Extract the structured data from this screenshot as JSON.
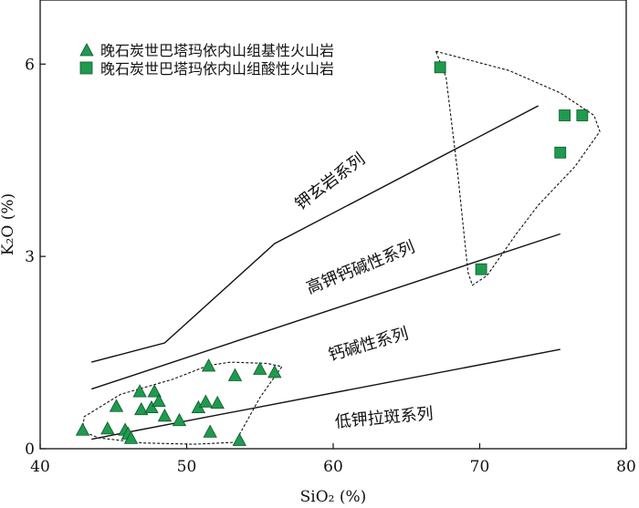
{
  "chart_data": {
    "type": "scatter",
    "xlabel": "SiO₂ (%)",
    "ylabel": "K₂O (%)",
    "xlim": [
      40,
      80
    ],
    "ylim": [
      0,
      7
    ],
    "x_ticks": [
      40,
      50,
      60,
      70,
      80
    ],
    "y_ticks": [
      0,
      3,
      6
    ],
    "grid": false,
    "legend_position": "top-left",
    "series": [
      {
        "name": "晚石炭世巴塔玛依内山组基性火山岩",
        "marker": "triangle",
        "color": "#1f9a4e",
        "points": [
          [
            42.9,
            0.28
          ],
          [
            44.6,
            0.3
          ],
          [
            45.2,
            0.65
          ],
          [
            45.8,
            0.28
          ],
          [
            46.0,
            0.22
          ],
          [
            46.2,
            0.15
          ],
          [
            46.8,
            0.88
          ],
          [
            46.9,
            0.6
          ],
          [
            47.6,
            0.63
          ],
          [
            47.8,
            0.88
          ],
          [
            48.1,
            0.73
          ],
          [
            48.5,
            0.5
          ],
          [
            49.5,
            0.43
          ],
          [
            50.8,
            0.63
          ],
          [
            51.3,
            0.72
          ],
          [
            51.5,
            1.28
          ],
          [
            51.6,
            0.25
          ],
          [
            52.1,
            0.7
          ],
          [
            53.3,
            1.13
          ],
          [
            53.6,
            0.12
          ],
          [
            55.0,
            1.23
          ],
          [
            56.0,
            1.18
          ]
        ]
      },
      {
        "name": "晚石炭世巴塔玛依内山组酸性火山岩",
        "marker": "square",
        "color": "#1f9a4e",
        "points": [
          [
            67.3,
            5.95
          ],
          [
            70.1,
            2.8
          ],
          [
            75.5,
            4.62
          ],
          [
            75.8,
            5.2
          ],
          [
            77.0,
            5.2
          ]
        ]
      }
    ],
    "boundary_lines": [
      {
        "points": [
          [
            43.5,
            1.35
          ],
          [
            48.5,
            1.65
          ],
          [
            56.0,
            3.2
          ],
          [
            74.0,
            5.35
          ]
        ]
      },
      {
        "points": [
          [
            43.5,
            0.93
          ],
          [
            75.5,
            3.35
          ]
        ]
      },
      {
        "points": [
          [
            43.5,
            0.15
          ],
          [
            75.5,
            1.55
          ]
        ]
      }
    ],
    "series_labels": [
      {
        "text": "钾玄岩系列",
        "x": 60.0,
        "y": 4.1,
        "angle": -37
      },
      {
        "text": "高钾钙碱性系列",
        "x": 62.0,
        "y": 2.75,
        "angle": -22
      },
      {
        "text": "钙碱性系列",
        "x": 62.5,
        "y": 1.55,
        "angle": -16
      },
      {
        "text": "低钾拉斑系列",
        "x": 63.5,
        "y": 0.4,
        "angle": -5
      }
    ],
    "enclosures": [
      {
        "points": [
          [
            42.9,
            0.28
          ],
          [
            43.0,
            0.5
          ],
          [
            45.5,
            0.85
          ],
          [
            49.0,
            1.08
          ],
          [
            51.5,
            1.3
          ],
          [
            53.0,
            1.35
          ],
          [
            55.5,
            1.33
          ],
          [
            56.5,
            1.28
          ],
          [
            55.0,
            0.8
          ],
          [
            53.3,
            0.1
          ],
          [
            50.5,
            0.07
          ],
          [
            47.0,
            0.09
          ],
          [
            44.0,
            0.17
          ],
          [
            42.8,
            0.28
          ]
        ]
      },
      {
        "points": [
          [
            67.0,
            6.2
          ],
          [
            72.0,
            5.9
          ],
          [
            75.5,
            5.55
          ],
          [
            77.8,
            5.2
          ],
          [
            78.2,
            4.95
          ],
          [
            76.5,
            4.4
          ],
          [
            74.0,
            3.8
          ],
          [
            72.5,
            3.35
          ],
          [
            70.5,
            2.7
          ],
          [
            69.5,
            2.55
          ],
          [
            69.2,
            2.75
          ],
          [
            68.5,
            4.3
          ],
          [
            67.7,
            5.8
          ],
          [
            67.0,
            6.2
          ]
        ]
      }
    ]
  }
}
